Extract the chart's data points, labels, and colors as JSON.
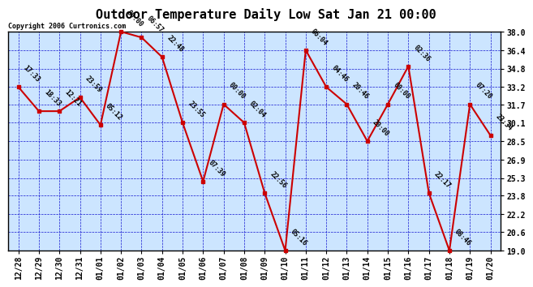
{
  "title": "Outdoor Temperature Daily Low Sat Jan 21 00:00",
  "copyright": "Copyright 2006 Curtronics.com",
  "x_labels": [
    "12/28",
    "12/29",
    "12/30",
    "12/31",
    "01/01",
    "01/02",
    "01/03",
    "01/04",
    "01/05",
    "01/06",
    "01/07",
    "01/08",
    "01/09",
    "01/10",
    "01/11",
    "01/12",
    "01/13",
    "01/14",
    "01/15",
    "01/16",
    "01/17",
    "01/18",
    "01/19",
    "01/20"
  ],
  "y_values": [
    33.2,
    31.1,
    31.1,
    32.3,
    29.9,
    38.0,
    37.5,
    35.8,
    30.1,
    25.0,
    31.7,
    30.1,
    24.0,
    19.0,
    36.4,
    33.2,
    31.7,
    28.5,
    31.7,
    35.0,
    24.0,
    19.0,
    31.7,
    29.0
  ],
  "annotations": [
    "17:33",
    "18:33",
    "12:21",
    "23:59",
    "05:12",
    "00:00",
    "06:57",
    "22:48",
    "23:55",
    "07:39",
    "00:00",
    "02:04",
    "22:56",
    "05:16",
    "06:04",
    "04:46",
    "20:46",
    "20:00",
    "00:00",
    "02:36",
    "22:17",
    "08:46",
    "07:20",
    "23:34"
  ],
  "ylim_min": 19.0,
  "ylim_max": 38.0,
  "yticks": [
    19.0,
    20.6,
    22.2,
    23.8,
    25.3,
    26.9,
    28.5,
    30.1,
    31.7,
    33.2,
    34.8,
    36.4,
    38.0
  ],
  "line_color": "#cc0000",
  "marker_color": "#cc0000",
  "bg_color": "#cce5ff",
  "grid_color": "#0000cc",
  "annotation_color": "#000000",
  "title_fontsize": 11,
  "annotation_fontsize": 6,
  "tick_fontsize": 7,
  "copyright_fontsize": 6
}
